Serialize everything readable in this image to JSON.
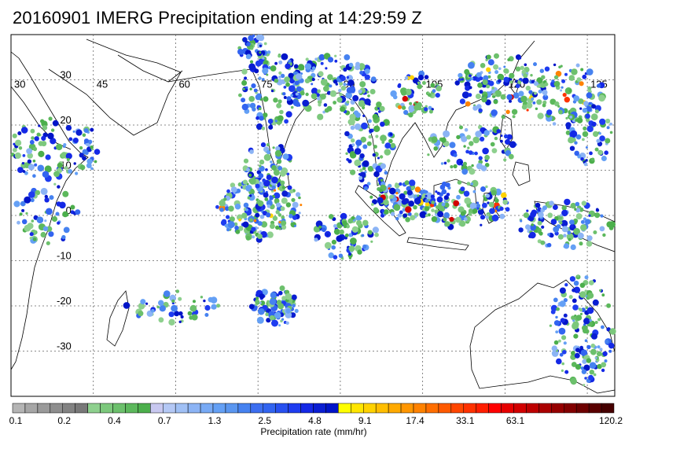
{
  "title": "20160901 IMERG Precipitation ending at 14:29:59 Z",
  "map": {
    "lon_range": [
      30,
      140
    ],
    "lat_range": [
      -40,
      40
    ],
    "lon_ticks": [
      "30",
      "45",
      "60",
      "75",
      "90",
      "105",
      "120",
      "135"
    ],
    "lat_ticks": [
      "30",
      "20",
      "10",
      "0",
      "-10",
      "-20",
      "-30"
    ],
    "grid": "dotted"
  },
  "colorbar": {
    "title": "Precipitation rate (mm/hr)",
    "labels": [
      "0.1",
      "0.2",
      "0.4",
      "0.7",
      "1.3",
      "2.5",
      "4.8",
      "9.1",
      "17.4",
      "33.1",
      "63.1",
      "120.2"
    ],
    "colors": [
      "#b4b4b4",
      "#a6a6a6",
      "#9a9a9a",
      "#8e8e8e",
      "#828282",
      "#787878",
      "#8ed08e",
      "#7cc87c",
      "#6cc06c",
      "#5cb85c",
      "#4caf4c",
      "#c8c8f0",
      "#b4c8f5",
      "#a0c0f5",
      "#8cb4f5",
      "#78aaf5",
      "#64a0f5",
      "#5a96f0",
      "#4682f0",
      "#3c6ef0",
      "#3264f0",
      "#2850f0",
      "#1e3cf0",
      "#1428e6",
      "#0a1ed2",
      "#0014c8",
      "#ffff00",
      "#ffe600",
      "#ffd200",
      "#ffbe00",
      "#ffaa00",
      "#ff9600",
      "#ff8200",
      "#ff6e00",
      "#ff5a00",
      "#ff4600",
      "#ff3200",
      "#ff1e00",
      "#ff0000",
      "#e60000",
      "#d20000",
      "#be0000",
      "#aa0000",
      "#960000",
      "#820000",
      "#6e0000",
      "#5a0000",
      "#460000"
    ]
  }
}
